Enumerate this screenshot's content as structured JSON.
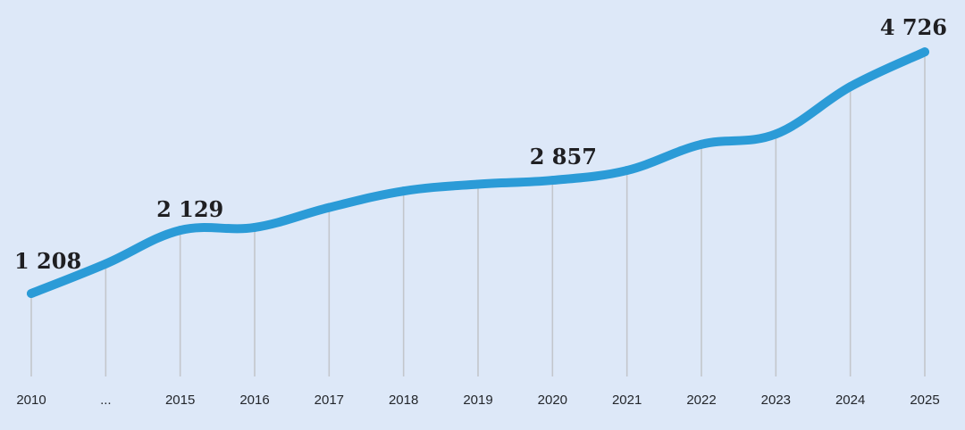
{
  "chart_data": {
    "type": "line",
    "title": "",
    "xlabel": "",
    "ylabel": "",
    "categories": [
      "2010",
      "...",
      "2015",
      "2016",
      "2017",
      "2018",
      "2019",
      "2020",
      "2021",
      "2022",
      "2023",
      "2024",
      "2025"
    ],
    "series": [
      {
        "values": [
          1208,
          1640,
          2129,
          2170,
          2460,
          2700,
          2800,
          2857,
          3000,
          3380,
          3530,
          4220,
          4726
        ],
        "color": "#2b9bd7"
      }
    ],
    "data_labels": [
      {
        "category": "2010",
        "text": "1 208"
      },
      {
        "category": "2015",
        "text": "2 129"
      },
      {
        "category": "2020",
        "text": "2 857"
      },
      {
        "category": "2025",
        "text": "4 726"
      }
    ],
    "ylim": [
      0,
      5300
    ],
    "grid": "vertical drop lines at each category",
    "legend": "none",
    "colors": {
      "background": "#dde8f8",
      "line": "#2b9bd7",
      "drop_lines": "#c3c6cc",
      "text": "#23262b"
    }
  }
}
